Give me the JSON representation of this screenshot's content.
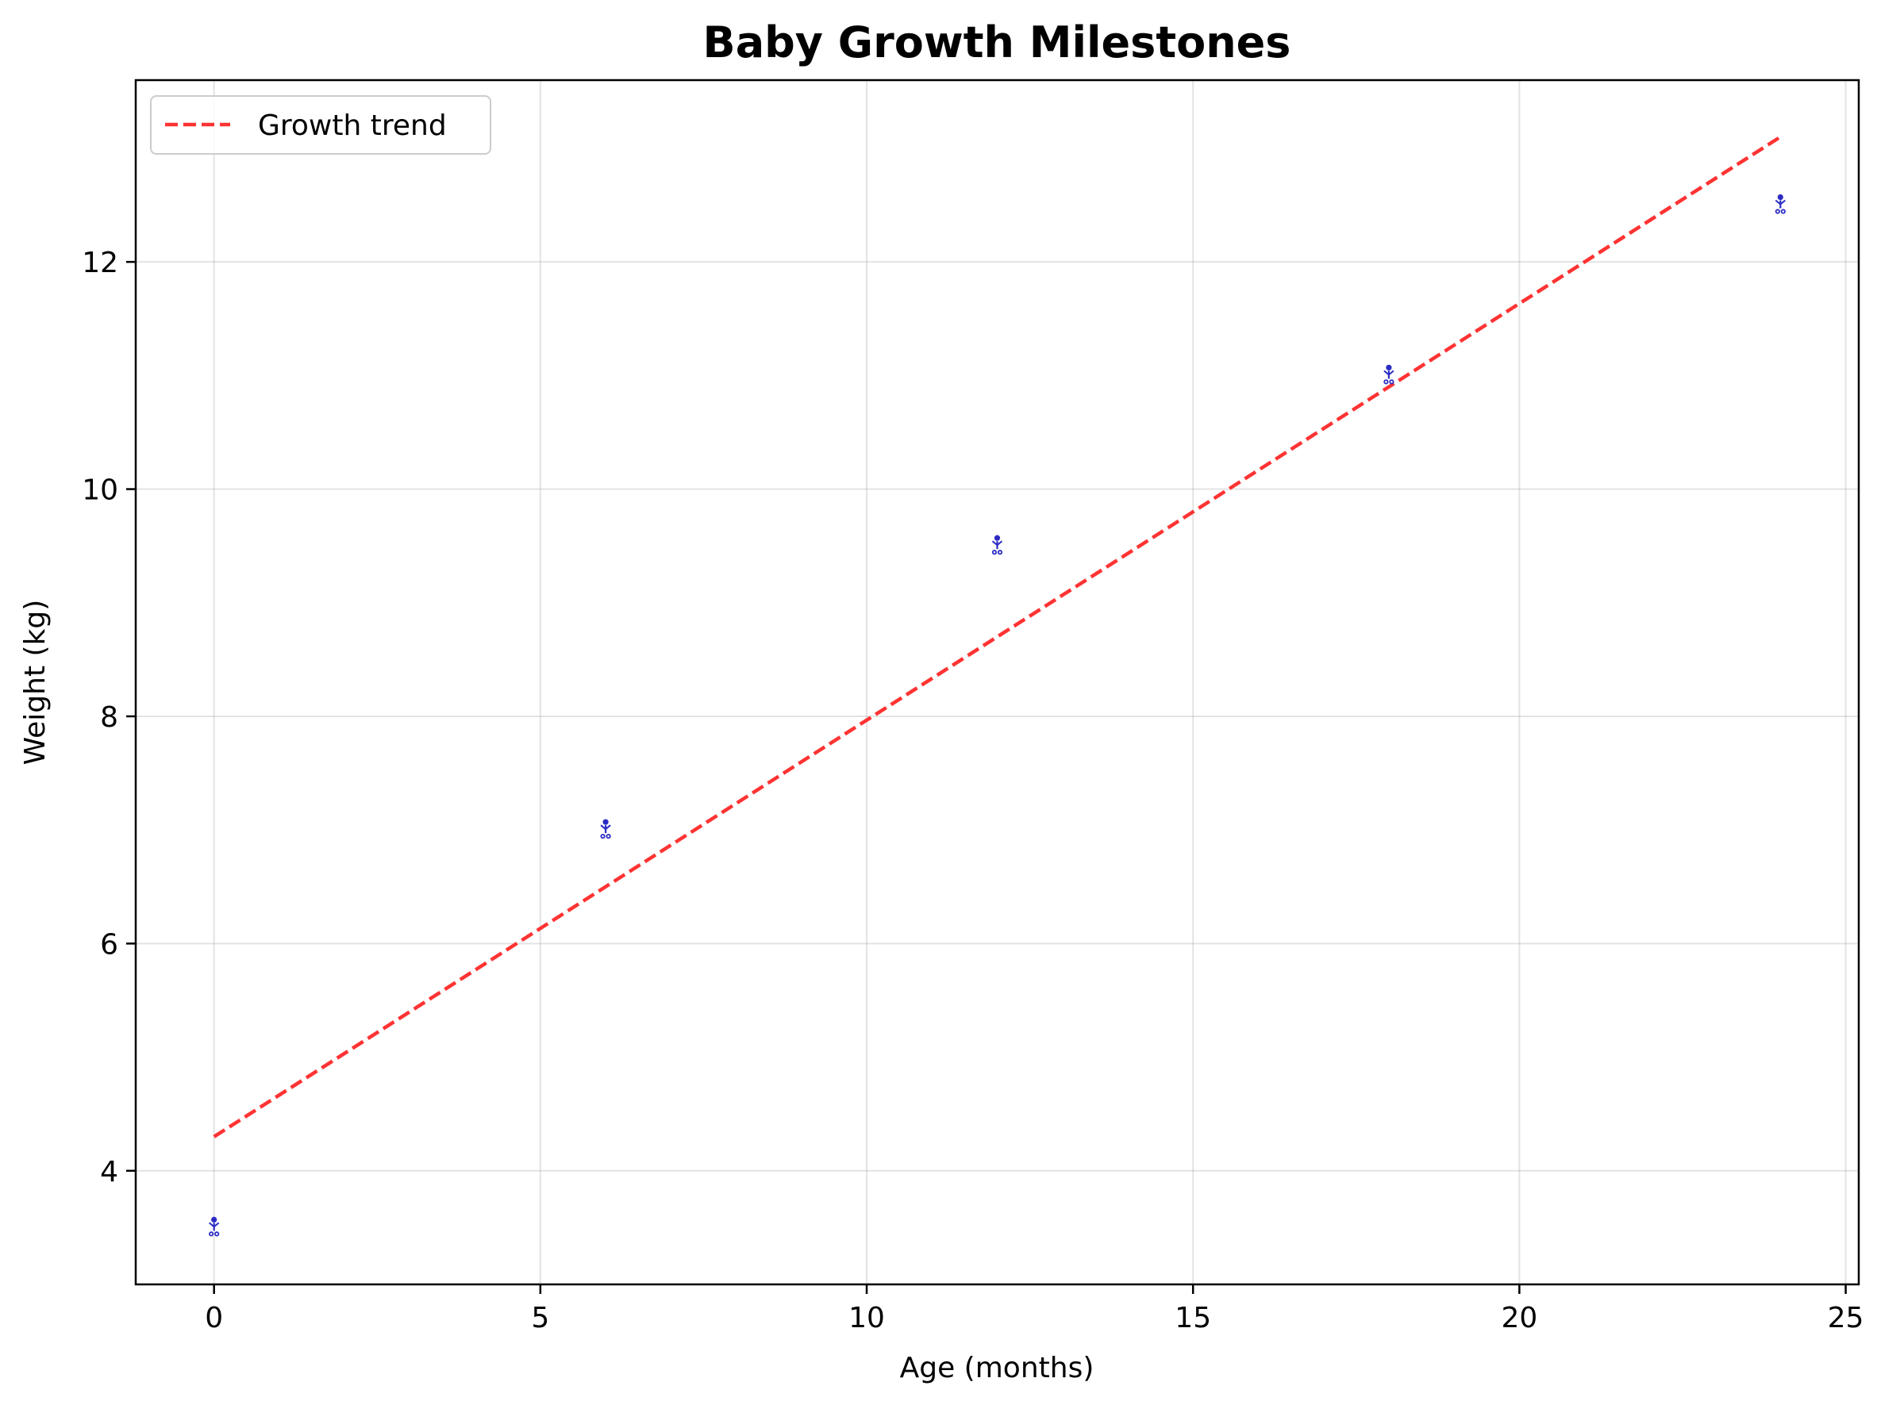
{
  "chart_data": {
    "type": "scatter",
    "title": "Baby Growth Milestones",
    "xlabel": "Age (months)",
    "ylabel": "Weight (kg)",
    "xlim": [
      -1.2,
      25.2
    ],
    "ylim": [
      3.0,
      13.6
    ],
    "xticks": [
      0,
      5,
      10,
      15,
      20,
      25
    ],
    "yticks": [
      4,
      6,
      8,
      10,
      12
    ],
    "grid": true,
    "legend_position": "top-left",
    "series": [
      {
        "kind": "points",
        "marker": "baby-icon",
        "color": "#2b2bc4",
        "x": [
          0,
          6,
          12,
          18,
          24
        ],
        "y": [
          3.5,
          7.0,
          9.5,
          11.0,
          12.5
        ]
      },
      {
        "kind": "trend-line",
        "name": "Growth trend",
        "style": "dashed",
        "color": "#ff3333",
        "x": [
          0,
          24
        ],
        "y": [
          4.3,
          13.1
        ]
      }
    ]
  }
}
